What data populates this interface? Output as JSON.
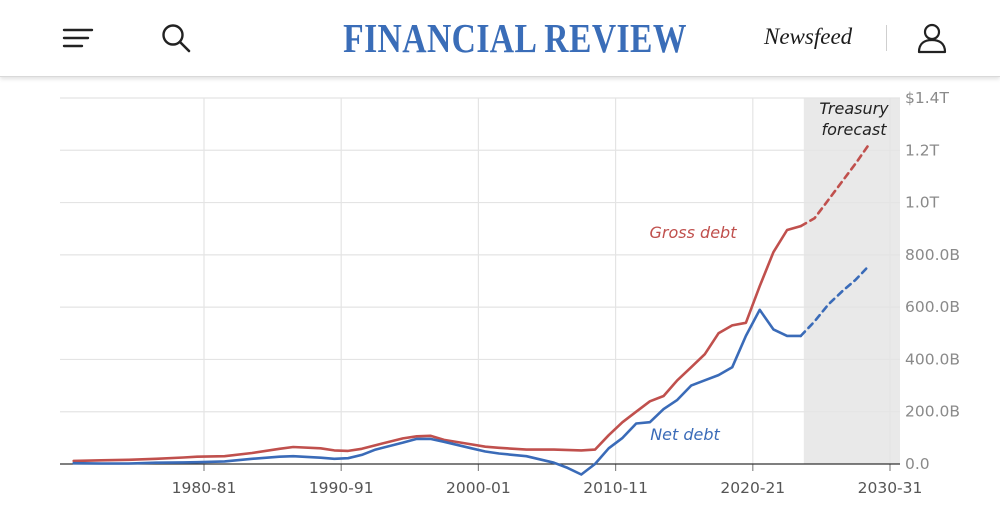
{
  "header": {
    "logo": "FINANCIAL REVIEW",
    "newsfeed_label": "Newsfeed",
    "icons": [
      "menu-icon",
      "search-icon",
      "user-icon"
    ]
  },
  "colors": {
    "gross": "#c0504d",
    "net": "#3a6bb8",
    "logo": "#3a6db8",
    "forecast_band": "#e9e9e9"
  },
  "chart_data": {
    "type": "line",
    "title": "",
    "xlabel": "",
    "ylabel": "",
    "x_ticks": [
      "1980-81",
      "1990-91",
      "2000-01",
      "2010-11",
      "2020-21",
      "2030-31"
    ],
    "x_range": [
      1971,
      2032
    ],
    "y_ticks": [
      "0.0",
      "200.0B",
      "400.0B",
      "600.0B",
      "800.0B",
      "1.0T",
      "1.2T",
      "$1.4T"
    ],
    "ylim": [
      0,
      1400
    ],
    "y_unit": "billion AUD",
    "forecast_band": {
      "label": [
        "Treasury",
        "forecast"
      ],
      "x_from": 2024,
      "x_to": 2032
    },
    "grid": true,
    "series": [
      {
        "name": "Gross debt",
        "label": "Gross debt",
        "color": "#c0504d",
        "x": [
          1971,
          1973,
          1975,
          1977,
          1979,
          1980,
          1982,
          1984,
          1986,
          1987,
          1989,
          1990,
          1991,
          1992,
          1993,
          1995,
          1996,
          1997,
          1998,
          2000,
          2001,
          2002,
          2004,
          2006,
          2008,
          2009,
          2010,
          2011,
          2012,
          2013,
          2014,
          2015,
          2016,
          2017,
          2018,
          2019,
          2020,
          2021,
          2022,
          2023,
          2024
        ],
        "y": [
          12,
          14,
          16,
          20,
          25,
          28,
          30,
          42,
          58,
          65,
          60,
          52,
          50,
          58,
          72,
          98,
          106,
          108,
          92,
          75,
          66,
          62,
          55,
          55,
          52,
          55,
          110,
          160,
          200,
          240,
          260,
          320,
          370,
          420,
          500,
          530,
          540,
          680,
          810,
          895,
          910
        ],
        "forecast_x": [
          2024,
          2025,
          2026,
          2027,
          2028,
          2029
        ],
        "forecast_y": [
          910,
          940,
          1010,
          1080,
          1150,
          1225
        ]
      },
      {
        "name": "Net debt",
        "label": "Net debt",
        "color": "#3a6bb8",
        "x": [
          1971,
          1973,
          1975,
          1977,
          1979,
          1980,
          1982,
          1984,
          1986,
          1987,
          1989,
          1990,
          1991,
          1992,
          1993,
          1995,
          1996,
          1997,
          1998,
          2000,
          2001,
          2002,
          2004,
          2006,
          2007,
          2008,
          2009,
          2010,
          2011,
          2012,
          2013,
          2014,
          2015,
          2016,
          2017,
          2018,
          2019,
          2020,
          2021,
          2022,
          2023,
          2024
        ],
        "y": [
          3,
          2,
          2,
          5,
          6,
          7,
          10,
          20,
          28,
          30,
          24,
          20,
          22,
          35,
          55,
          82,
          96,
          96,
          85,
          60,
          48,
          40,
          30,
          5,
          -15,
          -40,
          0,
          60,
          100,
          155,
          160,
          210,
          245,
          300,
          320,
          340,
          370,
          490,
          590,
          515,
          490,
          490
        ],
        "forecast_x": [
          2024,
          2025,
          2026,
          2027,
          2028,
          2029
        ],
        "forecast_y": [
          490,
          545,
          610,
          660,
          705,
          760
        ]
      }
    ]
  }
}
